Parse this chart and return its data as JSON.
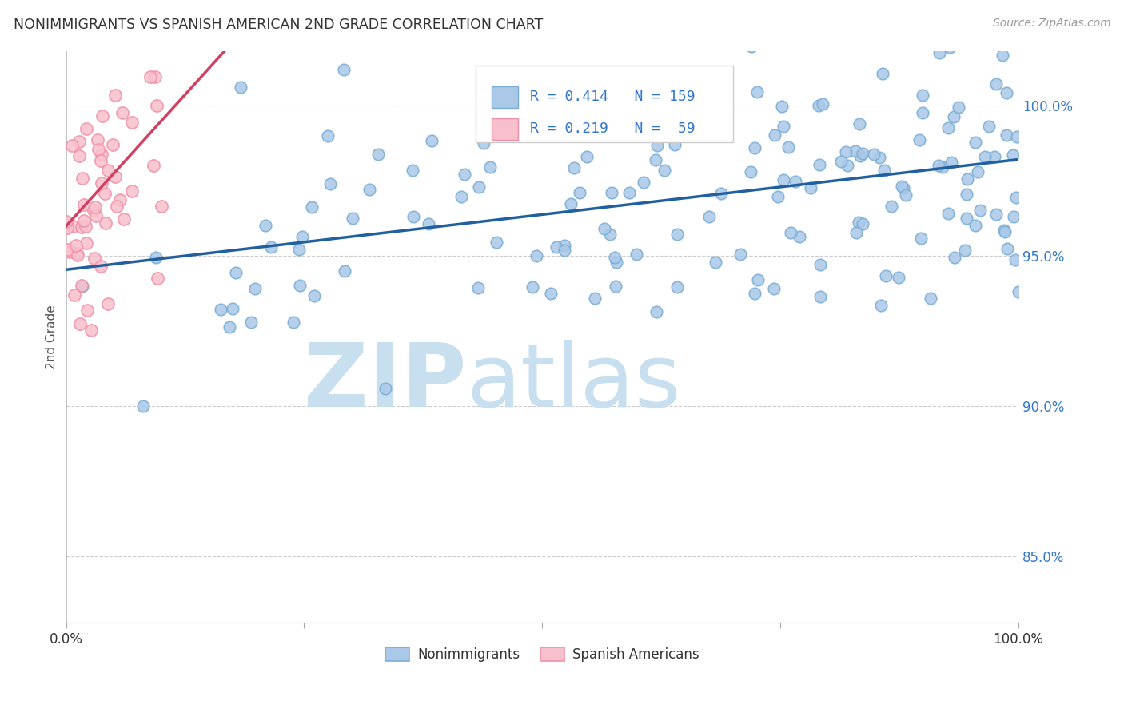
{
  "title": "NONIMMIGRANTS VS SPANISH AMERICAN 2ND GRADE CORRELATION CHART",
  "source": "Source: ZipAtlas.com",
  "ylabel": "2nd Grade",
  "ytick_labels": [
    "85.0%",
    "90.0%",
    "95.0%",
    "100.0%"
  ],
  "ytick_values": [
    0.85,
    0.9,
    0.95,
    1.0
  ],
  "xlim": [
    0.0,
    1.0
  ],
  "ylim": [
    0.828,
    1.018
  ],
  "legend_blue_label": "Nonimmigrants",
  "legend_pink_label": "Spanish Americans",
  "R_blue": 0.414,
  "N_blue": 159,
  "R_pink": 0.219,
  "N_pink": 59,
  "blue_marker_color": "#aac8e8",
  "blue_edge_color": "#7aadd4",
  "pink_marker_color": "#f8c0cc",
  "pink_edge_color": "#f090a8",
  "blue_line_color": "#2060a0",
  "pink_line_color": "#d04060",
  "watermark_zip_color": "#c8dff0",
  "watermark_atlas_color": "#c8dff0",
  "background_color": "#ffffff",
  "grid_color": "#cccccc",
  "title_color": "#333333",
  "axis_label_color": "#555555",
  "right_axis_color": "#3377cc",
  "legend_text_color": "#3377cc"
}
